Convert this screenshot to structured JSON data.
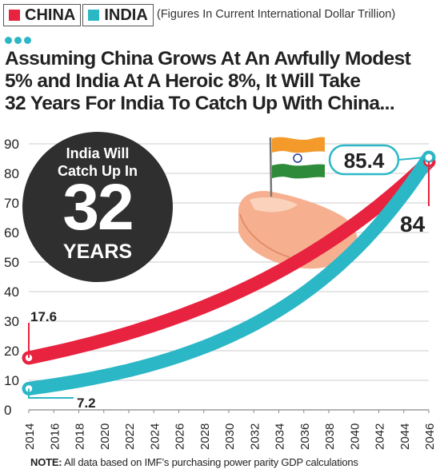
{
  "legend": {
    "note": "(Figures In Current International Dollar Trillion)"
  },
  "headline": {
    "line1": "Assuming China Grows At An Awfully Modest",
    "line2": "5% and India At A Heroic 8%, It Will Take",
    "line3": "32 Years For India To Catch Up With China..."
  },
  "badge": {
    "top1": "India Will",
    "top2": "Catch Up In",
    "big": "32",
    "bottom": "YEARS"
  },
  "note": {
    "label": "NOTE:",
    "text": " All data based on IMF’s purchasing power parity GDP calculations"
  },
  "icons": [
    "india-flag-icon",
    "thumb-icon"
  ],
  "chart_data": {
    "type": "line",
    "title": "Assuming China Grows At An Awfully Modest 5% and India At A Heroic 8%, It Will Take 32 Years For India To Catch Up With China...",
    "subtitle": "(Figures In Current International Dollar Trillion)",
    "xlabel": "",
    "ylabel": "",
    "xlim": [
      2014,
      2046
    ],
    "ylim": [
      0,
      90
    ],
    "yticks": [
      0,
      10,
      20,
      30,
      40,
      50,
      60,
      70,
      80,
      90
    ],
    "xticks": [
      2014,
      2016,
      2018,
      2020,
      2022,
      2024,
      2026,
      2028,
      2030,
      2032,
      2034,
      2036,
      2038,
      2040,
      2042,
      2044,
      2046
    ],
    "grid": true,
    "legend": "top-left",
    "series": [
      {
        "name": "CHINA",
        "color": "#e8233f",
        "growth_rate": 0.05,
        "start": {
          "x": 2014,
          "y": 17.6,
          "label": "17.6"
        },
        "end": {
          "x": 2046,
          "y": 84,
          "label": "84"
        }
      },
      {
        "name": "INDIA",
        "color": "#2bb7c6",
        "growth_rate": 0.08,
        "start": {
          "x": 2014,
          "y": 7.2,
          "label": "7.2"
        },
        "end": {
          "x": 2046,
          "y": 85.4,
          "label": "85.4"
        }
      }
    ]
  }
}
